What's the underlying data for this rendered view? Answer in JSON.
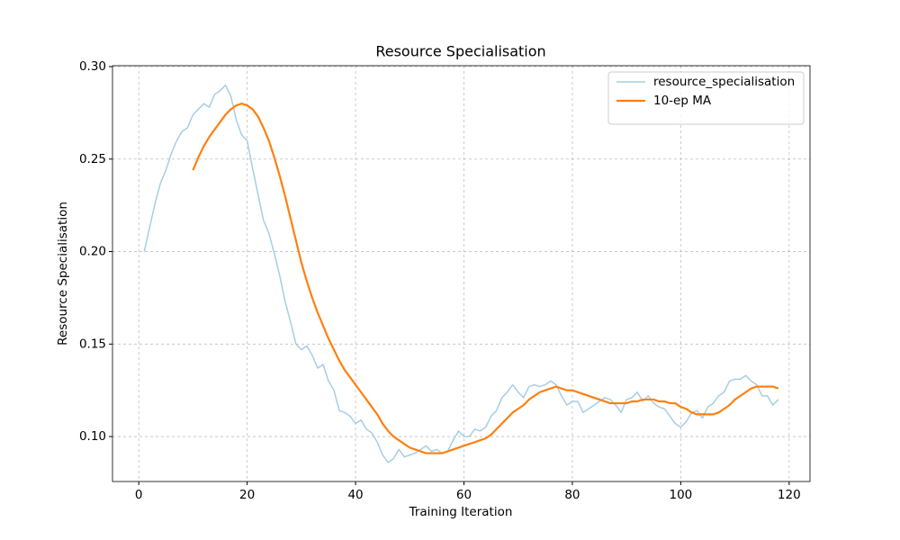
{
  "chart_data": {
    "type": "line",
    "title": "Resource Specialisation",
    "xlabel": "Training Iteration",
    "ylabel": "Resource Specialisation",
    "xlim": [
      -4.85,
      123.85
    ],
    "ylim": [
      0.0757,
      0.3005
    ],
    "xticks": [
      0,
      20,
      40,
      60,
      80,
      100,
      120
    ],
    "yticks": [
      {
        "value": 0.1,
        "label": "0.10"
      },
      {
        "value": 0.15,
        "label": "0.15"
      },
      {
        "value": 0.2,
        "label": "0.20"
      },
      {
        "value": 0.25,
        "label": "0.25"
      },
      {
        "value": 0.3,
        "label": "0.30"
      }
    ],
    "grid": true,
    "legend": "upper right",
    "series": [
      {
        "name": "resource_specialisation",
        "color": "#a6cee3",
        "width": 1.5,
        "x": [
          1,
          2,
          3,
          4,
          5,
          6,
          7,
          8,
          9,
          10,
          11,
          12,
          13,
          14,
          15,
          16,
          17,
          18,
          19,
          20,
          21,
          22,
          23,
          24,
          25,
          26,
          27,
          28,
          29,
          30,
          31,
          32,
          33,
          34,
          35,
          36,
          37,
          38,
          39,
          40,
          41,
          42,
          43,
          44,
          45,
          46,
          47,
          48,
          49,
          50,
          51,
          52,
          53,
          54,
          55,
          56,
          57,
          58,
          59,
          60,
          61,
          62,
          63,
          64,
          65,
          66,
          67,
          68,
          69,
          70,
          71,
          72,
          73,
          74,
          75,
          76,
          77,
          78,
          79,
          80,
          81,
          82,
          83,
          84,
          85,
          86,
          87,
          88,
          89,
          90,
          91,
          92,
          93,
          94,
          95,
          96,
          97,
          98,
          99,
          100,
          101,
          102,
          103,
          104,
          105,
          106,
          107,
          108,
          109,
          110,
          111,
          112,
          113,
          114,
          115,
          116,
          117,
          118
        ],
        "values": [
          0.2,
          0.213,
          0.226,
          0.237,
          0.244,
          0.253,
          0.26,
          0.265,
          0.267,
          0.274,
          0.277,
          0.28,
          0.278,
          0.285,
          0.287,
          0.29,
          0.284,
          0.271,
          0.263,
          0.26,
          0.245,
          0.231,
          0.217,
          0.21,
          0.199,
          0.187,
          0.173,
          0.162,
          0.15,
          0.147,
          0.149,
          0.144,
          0.137,
          0.139,
          0.13,
          0.125,
          0.114,
          0.113,
          0.111,
          0.107,
          0.109,
          0.104,
          0.102,
          0.097,
          0.09,
          0.086,
          0.088,
          0.093,
          0.089,
          0.09,
          0.091,
          0.093,
          0.095,
          0.092,
          0.093,
          0.091,
          0.092,
          0.098,
          0.103,
          0.1,
          0.1,
          0.104,
          0.103,
          0.105,
          0.111,
          0.114,
          0.121,
          0.124,
          0.128,
          0.124,
          0.121,
          0.127,
          0.128,
          0.127,
          0.128,
          0.13,
          0.128,
          0.122,
          0.117,
          0.119,
          0.119,
          0.113,
          0.115,
          0.117,
          0.119,
          0.121,
          0.12,
          0.117,
          0.113,
          0.12,
          0.121,
          0.124,
          0.119,
          0.122,
          0.118,
          0.116,
          0.115,
          0.111,
          0.107,
          0.105,
          0.108,
          0.113,
          0.114,
          0.11,
          0.116,
          0.118,
          0.122,
          0.124,
          0.13,
          0.131,
          0.131,
          0.133,
          0.13,
          0.128,
          0.122,
          0.122,
          0.117,
          0.12
        ]
      },
      {
        "name": "10-ep MA",
        "color": "#ff7f0e",
        "width": 2.2,
        "x": [
          10,
          11,
          12,
          13,
          14,
          15,
          16,
          17,
          18,
          19,
          20,
          21,
          22,
          23,
          24,
          25,
          26,
          27,
          28,
          29,
          30,
          31,
          32,
          33,
          34,
          35,
          36,
          37,
          38,
          39,
          40,
          41,
          42,
          43,
          44,
          45,
          46,
          47,
          48,
          49,
          50,
          51,
          52,
          53,
          54,
          55,
          56,
          57,
          58,
          59,
          60,
          61,
          62,
          63,
          64,
          65,
          66,
          67,
          68,
          69,
          70,
          71,
          72,
          73,
          74,
          75,
          76,
          77,
          78,
          79,
          80,
          81,
          82,
          83,
          84,
          85,
          86,
          87,
          88,
          89,
          90,
          91,
          92,
          93,
          94,
          95,
          96,
          97,
          98,
          99,
          100,
          101,
          102,
          103,
          104,
          105,
          106,
          107,
          108,
          109,
          110,
          111,
          112,
          113,
          114,
          115,
          116,
          117,
          118
        ],
        "values": [
          0.244,
          0.251,
          0.257,
          0.262,
          0.266,
          0.27,
          0.274,
          0.277,
          0.279,
          0.28,
          0.279,
          0.277,
          0.273,
          0.267,
          0.26,
          0.251,
          0.241,
          0.23,
          0.218,
          0.206,
          0.194,
          0.184,
          0.175,
          0.167,
          0.16,
          0.153,
          0.147,
          0.141,
          0.136,
          0.132,
          0.128,
          0.124,
          0.12,
          0.116,
          0.112,
          0.107,
          0.103,
          0.1,
          0.098,
          0.096,
          0.094,
          0.093,
          0.092,
          0.091,
          0.091,
          0.091,
          0.091,
          0.092,
          0.093,
          0.094,
          0.095,
          0.096,
          0.097,
          0.098,
          0.099,
          0.101,
          0.104,
          0.107,
          0.11,
          0.113,
          0.115,
          0.117,
          0.12,
          0.122,
          0.124,
          0.125,
          0.126,
          0.127,
          0.126,
          0.125,
          0.125,
          0.124,
          0.123,
          0.122,
          0.121,
          0.12,
          0.119,
          0.118,
          0.118,
          0.118,
          0.118,
          0.119,
          0.119,
          0.12,
          0.12,
          0.12,
          0.119,
          0.119,
          0.118,
          0.118,
          0.116,
          0.115,
          0.113,
          0.112,
          0.112,
          0.112,
          0.112,
          0.113,
          0.115,
          0.117,
          0.12,
          0.122,
          0.124,
          0.126,
          0.127,
          0.127,
          0.127,
          0.127,
          0.126
        ]
      }
    ]
  }
}
